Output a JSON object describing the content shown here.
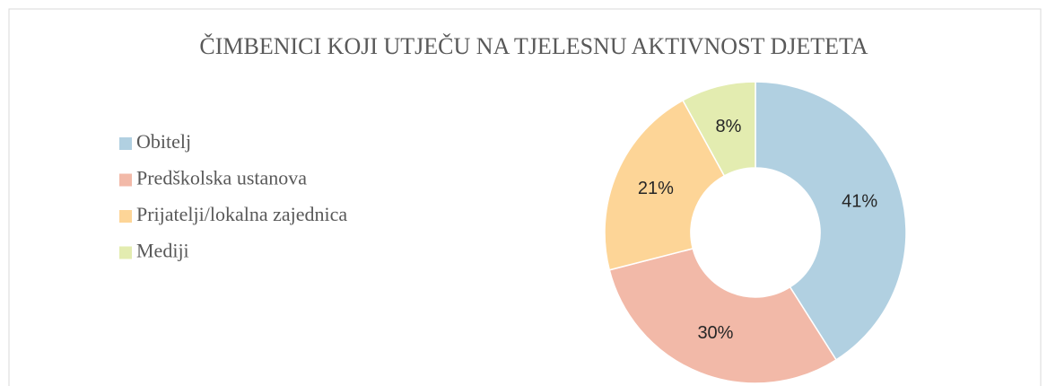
{
  "chart_data": {
    "type": "donut",
    "title": "ČIMBENICI KOJI UTJEČU NA TJELESNU AKTIVNOST DJETETA",
    "categories": [
      "Obitelj",
      "Predškolska ustanova",
      "Prijatelji/lokalna zajednica",
      "Mediji"
    ],
    "values": [
      41,
      30,
      21,
      8
    ],
    "value_labels": [
      "41%",
      "30%",
      "21%",
      "8%"
    ],
    "colors": [
      "#b1d0e1",
      "#f2b9a8",
      "#fdd597",
      "#e3ecb0"
    ],
    "legend": "left"
  }
}
